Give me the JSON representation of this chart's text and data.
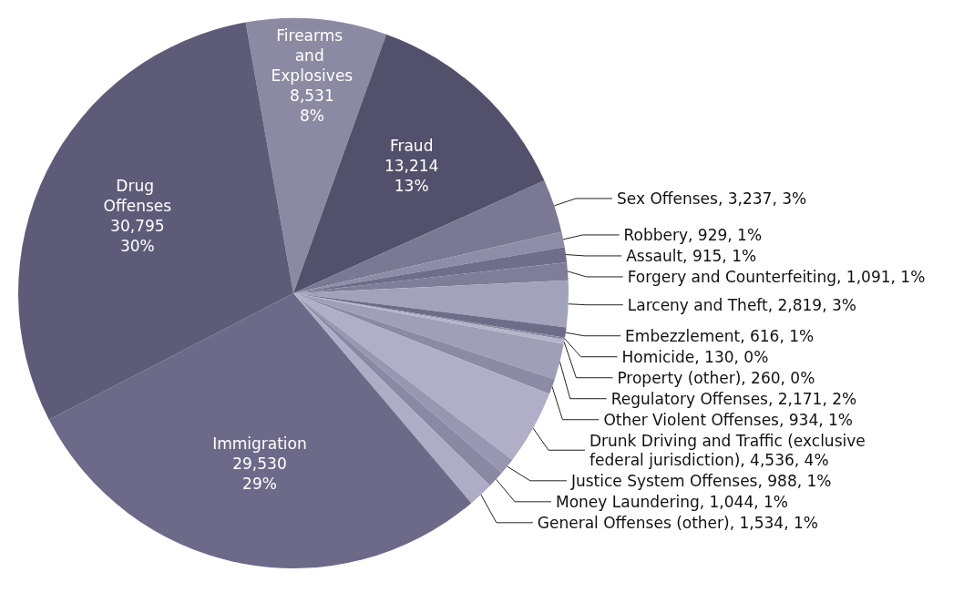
{
  "chart_data": {
    "type": "pie",
    "categories": [
      "Firearms and Explosives",
      "Fraud",
      "Sex Offenses",
      "Robbery",
      "Assault",
      "Forgery and Counterfeiting",
      "Larceny and Theft",
      "Embezzlement",
      "Homicide",
      "Property (other)",
      "Regulatory Offenses",
      "Other Violent Offenses",
      "Drunk Driving and Traffic (exclusive federal jurisdiction)",
      "Justice System Offenses",
      "Money Laundering",
      "General Offenses (other)",
      "Immigration",
      "Drug Offenses"
    ],
    "values": [
      8531,
      13214,
      3237,
      929,
      915,
      1091,
      2819,
      616,
      130,
      260,
      2171,
      934,
      4536,
      988,
      1044,
      1534,
      29530,
      30795
    ],
    "value_labels": [
      "8,531\n8%",
      "13,214\n13%",
      "3,237, 3%",
      "929, 1%",
      "915, 1%",
      "1,091, 1%",
      "2,819, 3%",
      "616, 1%",
      "130, 0%",
      "260, 0%",
      "2,171, 2%",
      "934, 1%",
      "4,536, 4%",
      "988, 1%",
      "1,044, 1%",
      "1,534, 1%",
      "29,530\n29%",
      "30,795\n30%"
    ],
    "colors": [
      "#8b8aa2",
      "#52506b",
      "#7a7893",
      "#8e8ca6",
      "#6f6d89",
      "#7f7d98",
      "#a3a2bb",
      "#6e6c88",
      "#8a89a3",
      "#b5b4c9",
      "#a09fb8",
      "#8c8ba5",
      "#b0afc7",
      "#9896b0",
      "#8a88a3",
      "#aeadc5",
      "#6c6a88",
      "#5d5b78"
    ]
  }
}
